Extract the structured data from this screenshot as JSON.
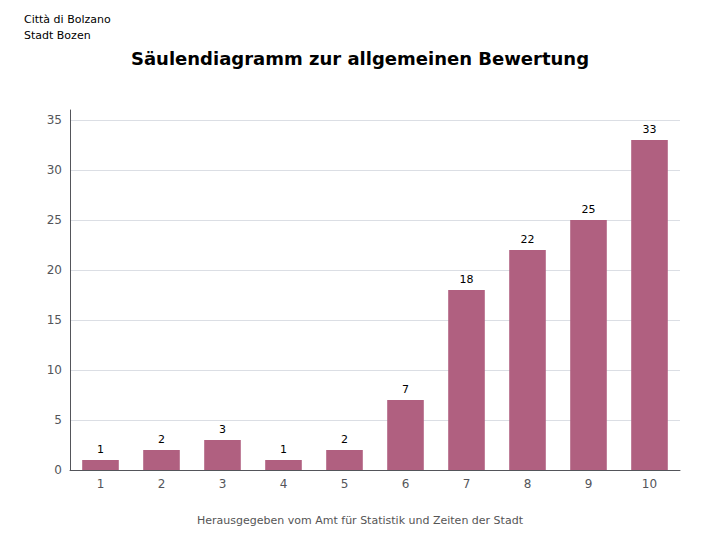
{
  "chart_data": {
    "type": "bar",
    "title": "Säulendiagramm zur allgemeinen Bewertung",
    "categories": [
      "1",
      "2",
      "3",
      "4",
      "5",
      "6",
      "7",
      "8",
      "9",
      "10"
    ],
    "values": [
      1,
      2,
      3,
      1,
      2,
      7,
      18,
      22,
      25,
      33
    ],
    "color": "#b06080",
    "ylim": [
      0,
      36
    ],
    "yticks": [
      0,
      5,
      10,
      15,
      20,
      25,
      30,
      35
    ],
    "grid": true,
    "data_labels": true,
    "annotations": [
      "Città di Bolzano",
      "Stadt Bozen",
      "Herausgegeben vom Amt für Statistik und Zeiten der Stadt"
    ]
  }
}
